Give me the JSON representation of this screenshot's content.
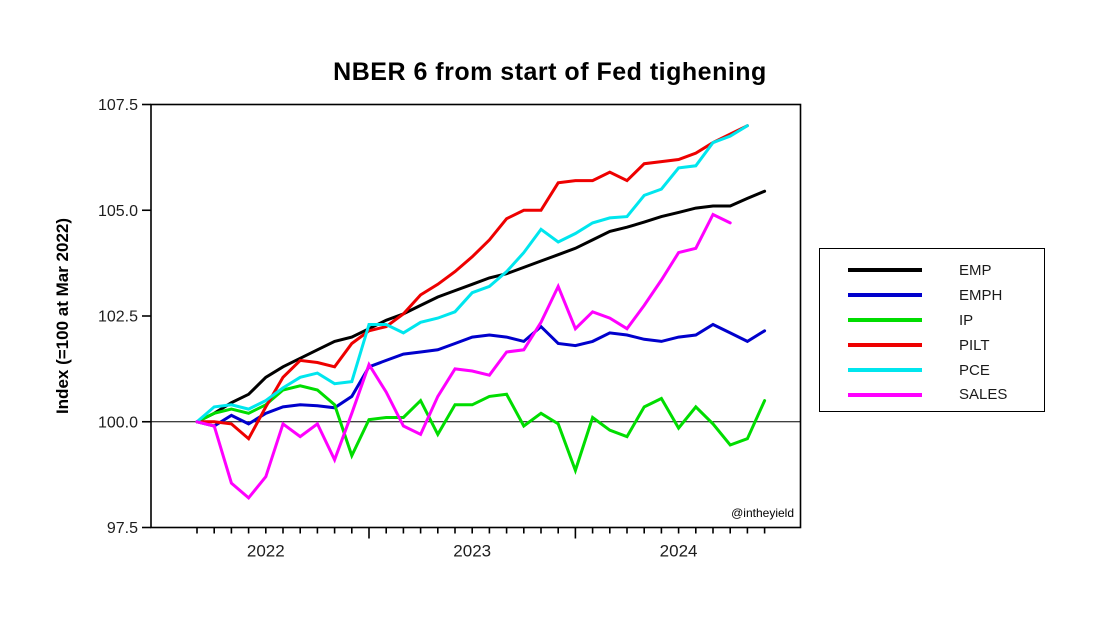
{
  "title": "NBER 6 from start of Fed tighening",
  "watermark": "@intheyield",
  "chart_data": {
    "type": "line",
    "title": "NBER 6 from start of Fed tighening",
    "xlabel": "",
    "ylabel": "Index (=100 at Mar 2022)",
    "ylim": [
      97.5,
      107.5
    ],
    "yticks": [
      97.5,
      100.0,
      102.5,
      105.0,
      107.5
    ],
    "ytick_labels": [
      "97.5",
      "100.0",
      "102.5",
      "105.0",
      "107.5"
    ],
    "grid": "off",
    "reference_line_y": 100.0,
    "legend_position": "outside-right",
    "x_frequency": "monthly",
    "months": [
      "Mar 2022",
      "Apr 2022",
      "May 2022",
      "Jun 2022",
      "Jul 2022",
      "Aug 2022",
      "Sep 2022",
      "Oct 2022",
      "Nov 2022",
      "Dec 2022",
      "Jan 2023",
      "Feb 2023",
      "Mar 2023",
      "Apr 2023",
      "May 2023",
      "Jun 2023",
      "Jul 2023",
      "Aug 2023",
      "Sep 2023",
      "Oct 2023",
      "Nov 2023",
      "Dec 2023",
      "Jan 2024",
      "Feb 2024",
      "Mar 2024",
      "Apr 2024",
      "May 2024",
      "Jun 2024",
      "Jul 2024",
      "Aug 2024",
      "Sep 2024",
      "Oct 2024",
      "Nov 2024",
      "Dec 2024"
    ],
    "x_year_labels": [
      {
        "label": "2022",
        "month_index": 4
      },
      {
        "label": "2023",
        "month_index": 16
      },
      {
        "label": "2024",
        "month_index": 28
      }
    ],
    "x_major_tick_month_indices": [
      10,
      22
    ],
    "series": [
      {
        "name": "EMP",
        "color": "#000000",
        "values": [
          100.0,
          100.2,
          100.45,
          100.65,
          101.05,
          101.3,
          101.5,
          101.7,
          101.9,
          102.0,
          102.2,
          102.4,
          102.55,
          102.75,
          102.95,
          103.1,
          103.25,
          103.4,
          103.5,
          103.65,
          103.8,
          103.95,
          104.1,
          104.3,
          104.5,
          104.6,
          104.72,
          104.85,
          104.95,
          105.05,
          105.1,
          105.1,
          105.28,
          105.45
        ]
      },
      {
        "name": "EMPH",
        "color": "#0000cc",
        "values": [
          100.0,
          99.9,
          100.15,
          99.95,
          100.2,
          100.35,
          100.4,
          100.38,
          100.33,
          100.6,
          101.3,
          101.45,
          101.6,
          101.65,
          101.7,
          101.85,
          102.0,
          102.05,
          102.0,
          101.9,
          102.25,
          101.85,
          101.8,
          101.9,
          102.1,
          102.05,
          101.95,
          101.9,
          102.0,
          102.05,
          102.3,
          102.1,
          101.9,
          102.15
        ]
      },
      {
        "name": "IP",
        "color": "#00dd00",
        "values": [
          100.0,
          100.2,
          100.3,
          100.2,
          100.4,
          100.75,
          100.85,
          100.75,
          100.4,
          99.2,
          100.05,
          100.1,
          100.1,
          100.5,
          99.7,
          100.4,
          100.4,
          100.6,
          100.65,
          99.9,
          100.2,
          99.95,
          98.85,
          100.1,
          99.8,
          99.65,
          100.35,
          100.55,
          99.85,
          100.35,
          99.95,
          99.45,
          99.6,
          100.5
        ]
      },
      {
        "name": "PILT",
        "color": "#ee0000",
        "values": [
          100.0,
          100.0,
          99.95,
          99.6,
          100.35,
          101.05,
          101.45,
          101.4,
          101.3,
          101.85,
          102.15,
          102.25,
          102.55,
          103.0,
          103.25,
          103.55,
          103.9,
          104.3,
          104.8,
          105.0,
          105.0,
          105.65,
          105.7,
          105.7,
          105.9,
          105.7,
          106.1,
          106.15,
          106.2,
          106.35,
          106.6,
          106.8,
          107.0
        ]
      },
      {
        "name": "PCE",
        "color": "#00e6ee",
        "values": [
          100.0,
          100.35,
          100.4,
          100.3,
          100.5,
          100.8,
          101.05,
          101.15,
          100.9,
          100.95,
          102.3,
          102.3,
          102.1,
          102.35,
          102.45,
          102.6,
          103.05,
          103.2,
          103.55,
          104.0,
          104.55,
          104.25,
          104.45,
          104.7,
          104.82,
          104.85,
          105.35,
          105.5,
          106.0,
          106.05,
          106.6,
          106.75,
          107.0
        ]
      },
      {
        "name": "SALES",
        "color": "#ff00ff",
        "values": [
          100.0,
          99.9,
          98.55,
          98.2,
          98.7,
          99.95,
          99.65,
          99.95,
          99.1,
          100.2,
          101.35,
          100.7,
          99.9,
          99.7,
          100.6,
          101.25,
          101.2,
          101.1,
          101.65,
          101.7,
          102.35,
          103.2,
          102.2,
          102.6,
          102.45,
          102.2,
          102.75,
          103.35,
          104.0,
          104.1,
          104.9,
          104.7
        ]
      }
    ]
  }
}
